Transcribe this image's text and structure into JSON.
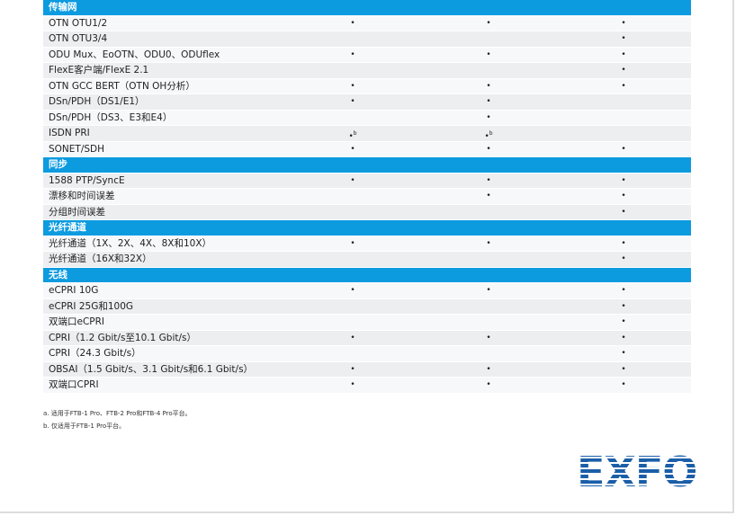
{
  "table": {
    "sections": [
      {
        "title": "传输网",
        "rows": [
          [
            "OTN OTU1/2",
            "•",
            "•",
            "•"
          ],
          [
            "OTN OTU3/4",
            null,
            null,
            "•"
          ],
          [
            "ODU Mux、EoOTN、ODU0、ODUflex",
            "•",
            "•",
            "•"
          ],
          [
            "FlexE客户端/FlexE 2.1",
            null,
            null,
            "•"
          ],
          [
            "OTN GCC BERT（OTN OH分析）",
            "•",
            "•",
            "•"
          ],
          [
            "DSn/PDH（DS1/E1）",
            "•",
            "•",
            null
          ],
          [
            "DSn/PDH（DS3、E3和E4）",
            null,
            "•",
            null
          ],
          [
            "ISDN PRI",
            {
              "mark": "•",
              "sup": "b"
            },
            {
              "mark": "•",
              "sup": "b"
            },
            null
          ],
          [
            "SONET/SDH",
            "•",
            "•",
            "•"
          ]
        ]
      },
      {
        "title": "同步",
        "rows": [
          [
            "1588 PTP/SyncE",
            "•",
            "•",
            "•"
          ],
          [
            "漂移和时间误差",
            null,
            "•",
            "•"
          ],
          [
            "分组时间误差",
            null,
            null,
            "•"
          ]
        ]
      },
      {
        "title": "光纤通道",
        "rows": [
          [
            "光纤通道（1X、2X、4X、8X和10X）",
            "•",
            "•",
            "•"
          ],
          [
            "光纤通道（16X和32X）",
            null,
            null,
            "•"
          ]
        ]
      },
      {
        "title": "无线",
        "rows": [
          [
            "eCPRI 10G",
            "•",
            "•",
            "•"
          ],
          [
            "eCPRI 25G和100G",
            null,
            null,
            "•"
          ],
          [
            "双端口eCPRI",
            null,
            null,
            "•"
          ],
          [
            "CPRI（1.2 Gbit/s至10.1 Gbit/s）",
            "•",
            "•",
            "•"
          ],
          [
            "CPRI（24.3 Gbit/s）",
            null,
            null,
            "•"
          ],
          [
            "OBSAI（1.5 Gbit/s、3.1 Gbit/s和6.1 Gbit/s）",
            "•",
            "•",
            "•"
          ],
          [
            "双端口CPRI",
            "•",
            "•",
            "•"
          ]
        ]
      }
    ]
  },
  "footnotes": [
    "a. 适用于FTB-1 Pro、FTB-2 Pro和FTB-4 Pro平台。",
    "b. 仅适用于FTB-1 Pro平台。"
  ],
  "logo": "EXFO"
}
